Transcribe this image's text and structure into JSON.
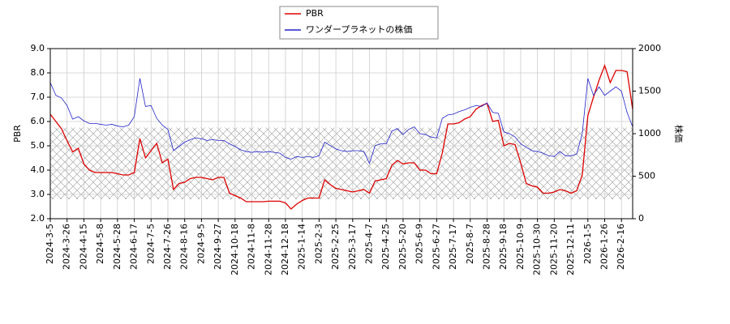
{
  "chart_data": {
    "type": "line",
    "ylabel": "PBR",
    "y2label": "株価",
    "categories": [
      "2024-3-5",
      null,
      null,
      "2024-3-26",
      null,
      null,
      "2024-4-15",
      null,
      null,
      "2024-5-8",
      null,
      null,
      "2024-5-28",
      null,
      null,
      "2024-6-17",
      null,
      null,
      "2024-7-5",
      null,
      null,
      "2024-7-26",
      null,
      null,
      "2024-8-16",
      null,
      null,
      "2024-9-5",
      null,
      null,
      "2024-9-27",
      null,
      null,
      "2024-10-18",
      null,
      null,
      "2024-11-8",
      null,
      null,
      "2024-11-28",
      null,
      null,
      "2024-12-18",
      null,
      null,
      "2025-1-14",
      null,
      null,
      "2025-2-3",
      null,
      null,
      "2025-2-25",
      null,
      null,
      "2025-3-17",
      null,
      null,
      "2025-4-7",
      null,
      null,
      "2025-4-25",
      null,
      null,
      "2025-5-20",
      null,
      null,
      "2025-6-9",
      null,
      null,
      "2025-6-27",
      null,
      null,
      "2025-7-17",
      null,
      null,
      "2025-8-7",
      null,
      null,
      "2025-8-28",
      null,
      null,
      "2025-9-18",
      null,
      null,
      "2025-10-9",
      null,
      null,
      "2025-10-30",
      null,
      null,
      "2025-11-20",
      null,
      null,
      "2025-12-11",
      null,
      null,
      "2026-1-5",
      null,
      null,
      "2026-1-26",
      null,
      null,
      "2026-2-16",
      null,
      null
    ],
    "series": [
      {
        "name": "PBR",
        "color": "#dd0000",
        "values": [
          6.3,
          6.0,
          5.7,
          5.2,
          4.75,
          4.9,
          4.25,
          4.0,
          3.9,
          3.9,
          3.9,
          3.9,
          3.85,
          3.8,
          3.8,
          3.9,
          5.3,
          4.5,
          4.8,
          5.1,
          4.3,
          4.45,
          3.2,
          3.45,
          3.5,
          3.65,
          3.7,
          3.7,
          3.65,
          3.6,
          3.7,
          3.7,
          3.05,
          2.95,
          2.85,
          2.7,
          2.7,
          2.7,
          2.7,
          2.72,
          2.72,
          2.72,
          2.65,
          2.4,
          2.6,
          2.75,
          2.85,
          2.85,
          2.85,
          3.6,
          3.4,
          3.25,
          3.2,
          3.15,
          3.1,
          3.15,
          3.2,
          3.05,
          3.55,
          3.6,
          3.65,
          4.2,
          4.4,
          4.25,
          4.3,
          4.3,
          4.0,
          4.0,
          3.85,
          3.85,
          4.7,
          5.9,
          5.9,
          5.95,
          6.1,
          6.2,
          6.5,
          6.65,
          6.75,
          6.0,
          6.05,
          5.0,
          5.1,
          5.05,
          4.3,
          3.45,
          3.35,
          3.3,
          3.05,
          3.05,
          3.1,
          3.2,
          3.15,
          3.05,
          3.15,
          3.8,
          6.25,
          7.0,
          7.7,
          8.3,
          7.6,
          8.1,
          8.1,
          8.05,
          6.5
        ]
      },
      {
        "name": "ワンダープラネットの株価",
        "color": "#2222cc",
        "axis": "y2",
        "values": [
          1600,
          1450,
          1420,
          1330,
          1170,
          1200,
          1150,
          1120,
          1120,
          1110,
          1100,
          1110,
          1090,
          1080,
          1100,
          1200,
          1650,
          1320,
          1330,
          1180,
          1100,
          1050,
          800,
          850,
          900,
          930,
          950,
          940,
          920,
          930,
          920,
          920,
          880,
          850,
          810,
          790,
          780,
          790,
          780,
          790,
          780,
          770,
          720,
          700,
          730,
          720,
          730,
          720,
          740,
          900,
          860,
          820,
          800,
          790,
          800,
          800,
          790,
          650,
          860,
          880,
          880,
          1030,
          1060,
          990,
          1050,
          1080,
          1000,
          990,
          960,
          950,
          1180,
          1220,
          1230,
          1260,
          1280,
          1310,
          1330,
          1320,
          1360,
          1250,
          1240,
          1020,
          1000,
          960,
          880,
          840,
          800,
          790,
          770,
          740,
          730,
          790,
          740,
          740,
          760,
          1000,
          1650,
          1450,
          1550,
          1450,
          1500,
          1550,
          1500,
          1250,
          1080
        ]
      }
    ],
    "band": [
      2.8,
      5.75
    ],
    "ylim": [
      2,
      9
    ],
    "yticks": [
      {
        "value": 2,
        "label": "2.0"
      },
      {
        "value": 3,
        "label": "3.0"
      },
      {
        "value": 4,
        "label": "4.0"
      },
      {
        "value": 5,
        "label": "5.0"
      },
      {
        "value": 6,
        "label": "6.0"
      },
      {
        "value": 7,
        "label": "7.0"
      },
      {
        "value": 8,
        "label": "8.0"
      },
      {
        "value": 9,
        "label": "9.0"
      }
    ],
    "y2lim": [
      0,
      2000
    ],
    "y2ticks": [
      0,
      500,
      1000,
      1500,
      2000
    ],
    "grid": true
  }
}
